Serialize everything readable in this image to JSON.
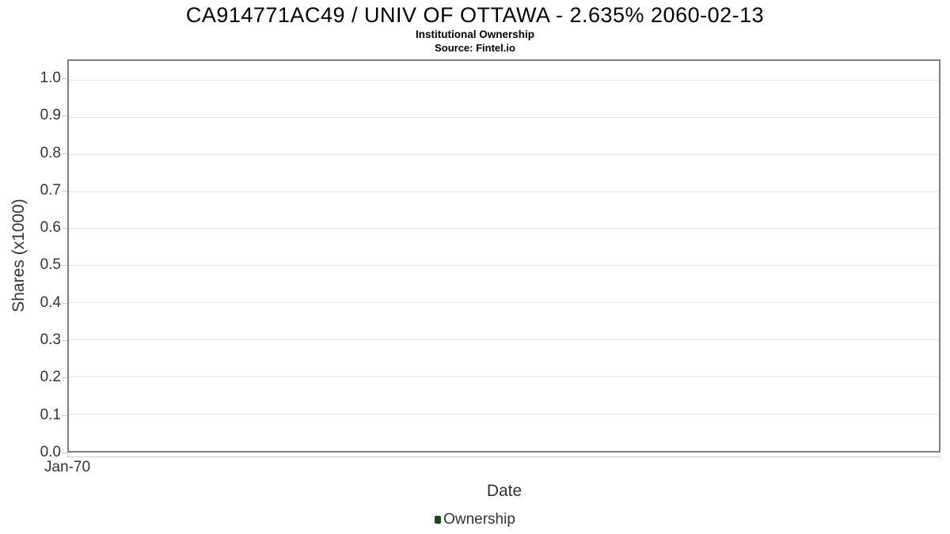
{
  "header": {
    "title": "CA914771AC49 / UNIV OF OTTAWA - 2.635% 2060-02-13",
    "subtitle": "Institutional Ownership",
    "source": "Source: Fintel.io"
  },
  "chart_data": {
    "type": "column",
    "title": "CA914771AC49 / UNIV OF OTTAWA - 2.635% 2060-02-13",
    "subtitle": "Institutional Ownership",
    "source": "Source: Fintel.io",
    "xlabel": "Date",
    "ylabel": "Shares (x1000)",
    "x_ticks": [
      "Jan-70"
    ],
    "y_ticks": [
      0.0,
      0.1,
      0.2,
      0.3,
      0.4,
      0.5,
      0.6,
      0.7,
      0.8,
      0.9,
      1.0
    ],
    "ylim": [
      0,
      1.0507
    ],
    "grid": true,
    "legend_position": "bottom-center",
    "series": [
      {
        "name": "Ownership",
        "color": "#1e4a23",
        "values": []
      }
    ]
  },
  "legend": {
    "items": [
      {
        "label": "Ownership",
        "marker_color": "#1e4a23"
      }
    ]
  },
  "colors": {
    "plot_border": "#7f7f7f",
    "gridline": "#e6e6e6",
    "tick": "#cccccc",
    "axis_text": "#333333",
    "title_text": "#000000",
    "series_green": "#1e4a23"
  }
}
